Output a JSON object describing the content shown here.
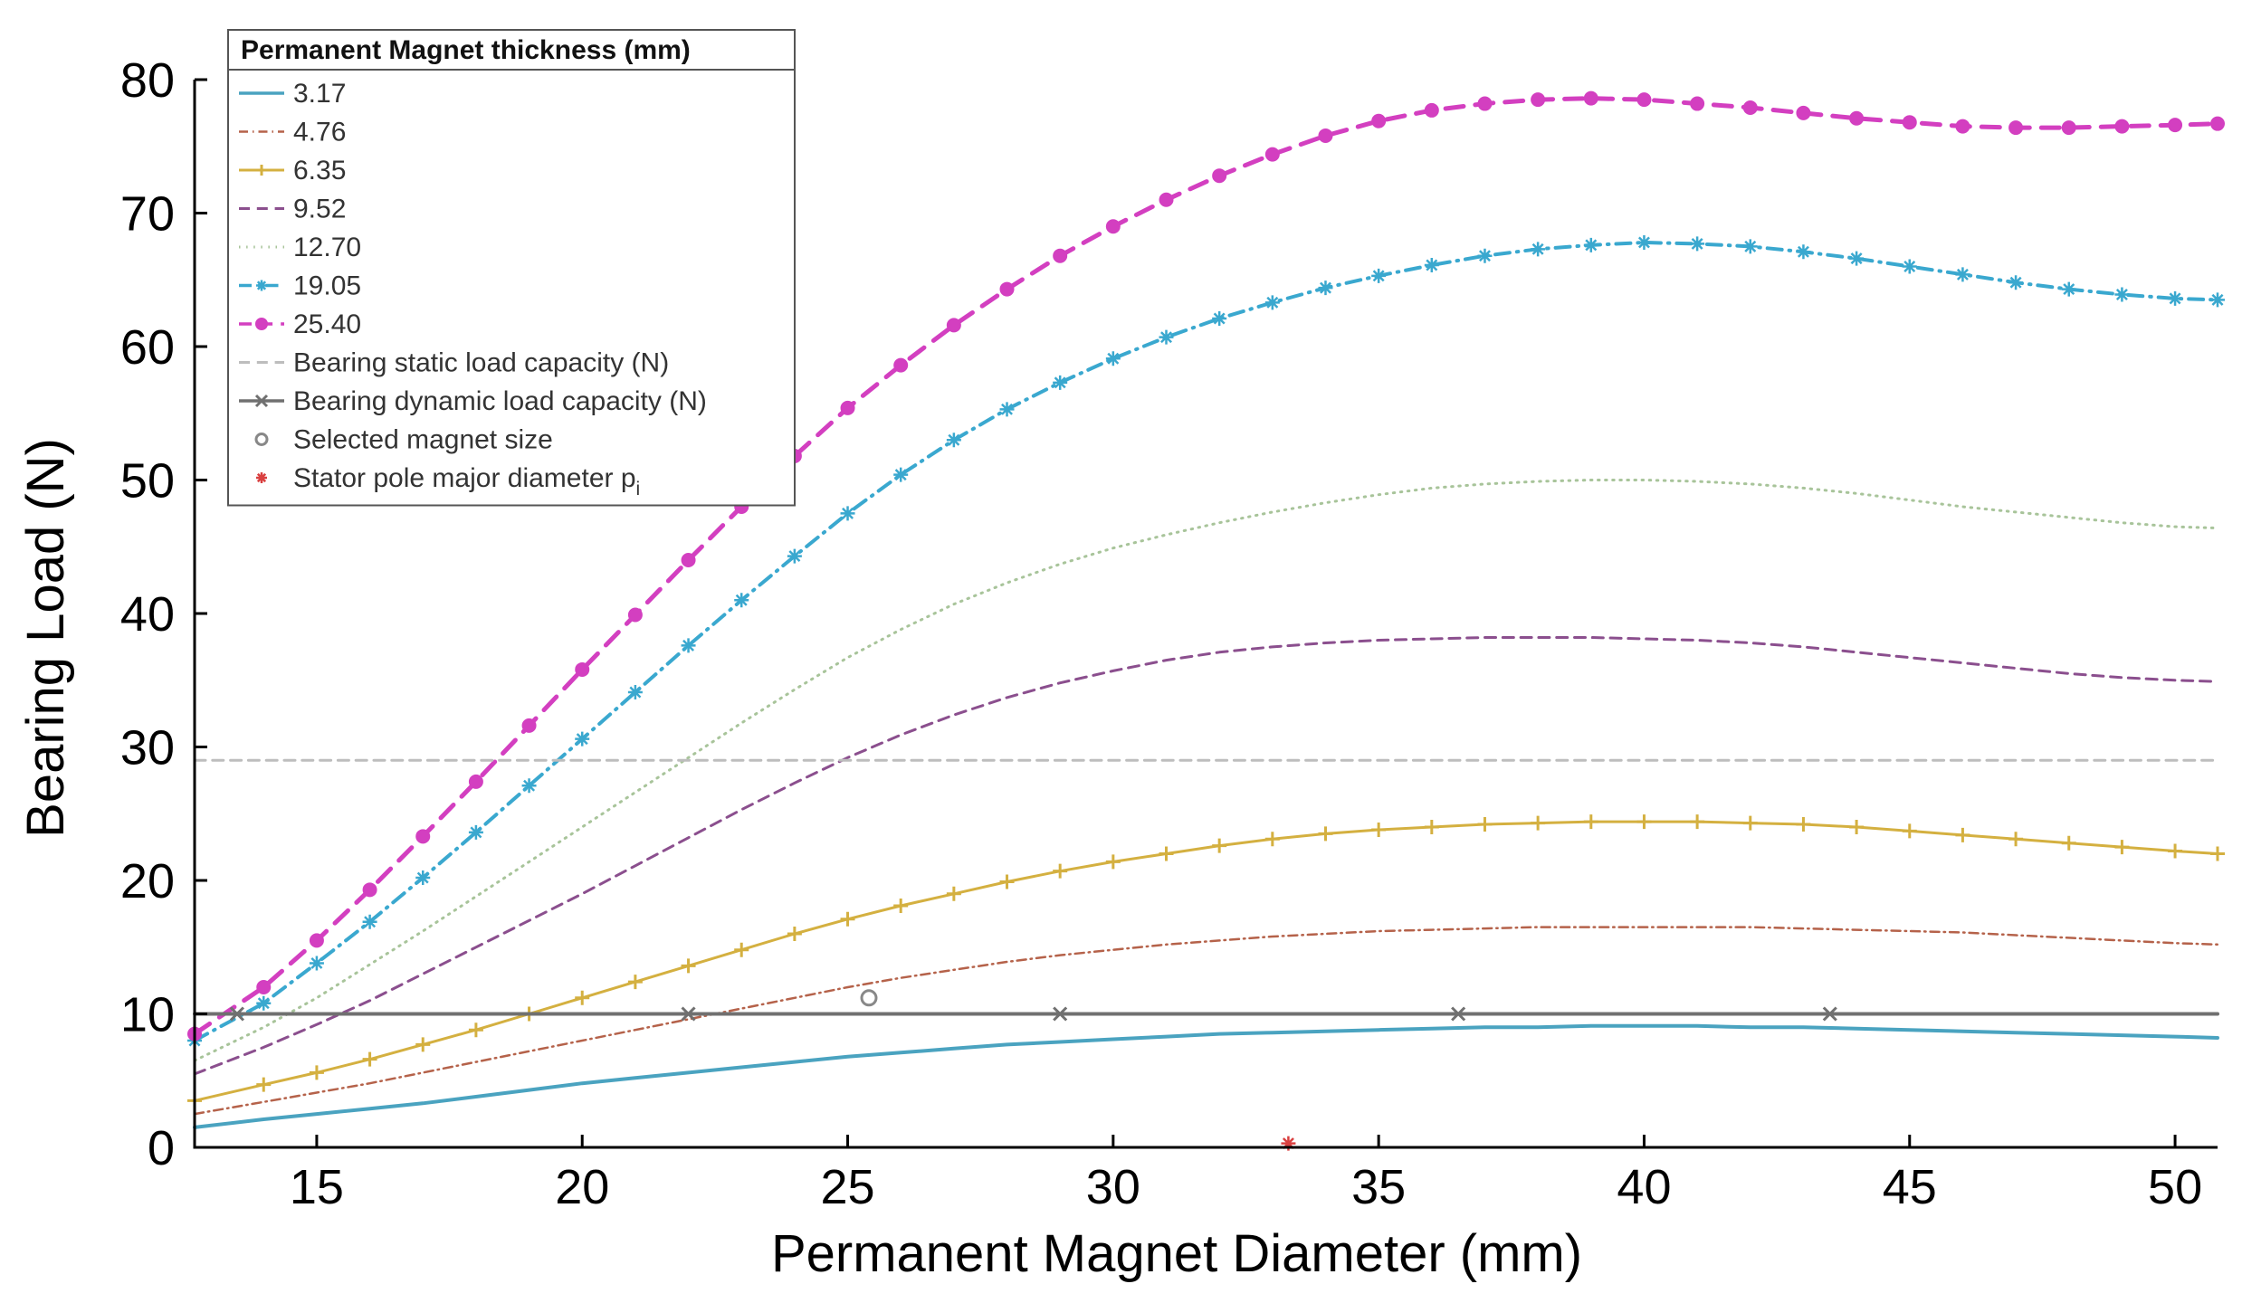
{
  "chart_data": {
    "type": "line",
    "title": "",
    "xlabel": "Permanent Magnet Diameter (mm)",
    "ylabel": "Bearing Load (N)",
    "xlim": [
      12.7,
      50.8
    ],
    "ylim": [
      0,
      80
    ],
    "xticks": [
      15,
      20,
      25,
      30,
      35,
      40,
      45,
      50
    ],
    "yticks": [
      0,
      10,
      20,
      30,
      40,
      50,
      60,
      70,
      80
    ],
    "x": [
      12.7,
      14,
      15,
      16,
      17,
      18,
      19,
      20,
      21,
      22,
      23,
      24,
      25,
      26,
      27,
      28,
      29,
      30,
      31,
      32,
      33,
      34,
      35,
      36,
      37,
      38,
      39,
      40,
      41,
      42,
      43,
      44,
      45,
      46,
      47,
      48,
      49,
      50,
      50.8
    ],
    "legend_title": "Permanent Magnet thickness (mm)",
    "legend_location": "top-left",
    "series": [
      {
        "name": "3.17",
        "color": "#4aa3c0",
        "style": "solid",
        "marker": "none",
        "width": 4,
        "values": [
          1.5,
          2.1,
          2.5,
          2.9,
          3.3,
          3.8,
          4.3,
          4.8,
          5.2,
          5.6,
          6.0,
          6.4,
          6.8,
          7.1,
          7.4,
          7.7,
          7.9,
          8.1,
          8.3,
          8.5,
          8.6,
          8.7,
          8.8,
          8.9,
          9.0,
          9.0,
          9.1,
          9.1,
          9.1,
          9.0,
          9.0,
          8.9,
          8.8,
          8.7,
          8.6,
          8.5,
          8.4,
          8.3,
          8.2
        ]
      },
      {
        "name": "4.76",
        "color": "#b5624a",
        "style": "dashdot",
        "marker": "none",
        "width": 2.5,
        "values": [
          2.5,
          3.4,
          4.1,
          4.8,
          5.6,
          6.4,
          7.2,
          8.0,
          8.8,
          9.6,
          10.4,
          11.2,
          12.0,
          12.7,
          13.3,
          13.9,
          14.4,
          14.8,
          15.2,
          15.5,
          15.8,
          16.0,
          16.2,
          16.3,
          16.4,
          16.5,
          16.5,
          16.5,
          16.5,
          16.5,
          16.4,
          16.3,
          16.2,
          16.1,
          15.9,
          15.7,
          15.5,
          15.3,
          15.2
        ]
      },
      {
        "name": "6.35",
        "color": "#d4b040",
        "style": "solid",
        "marker": "plus",
        "width": 3,
        "values": [
          3.5,
          4.7,
          5.6,
          6.6,
          7.7,
          8.8,
          10.0,
          11.2,
          12.4,
          13.6,
          14.8,
          16.0,
          17.1,
          18.1,
          19.0,
          19.9,
          20.7,
          21.4,
          22.0,
          22.6,
          23.1,
          23.5,
          23.8,
          24.0,
          24.2,
          24.3,
          24.4,
          24.4,
          24.4,
          24.3,
          24.2,
          24.0,
          23.7,
          23.4,
          23.1,
          22.8,
          22.5,
          22.2,
          22.0
        ]
      },
      {
        "name": "9.52",
        "color": "#8b4f8e",
        "style": "dashed",
        "marker": "none",
        "width": 3,
        "values": [
          5.5,
          7.5,
          9.2,
          11.0,
          13.0,
          15.0,
          17.0,
          19.0,
          21.1,
          23.2,
          25.3,
          27.3,
          29.2,
          30.9,
          32.4,
          33.7,
          34.8,
          35.7,
          36.5,
          37.1,
          37.5,
          37.8,
          38.0,
          38.1,
          38.2,
          38.2,
          38.2,
          38.1,
          38.0,
          37.8,
          37.5,
          37.1,
          36.7,
          36.3,
          35.9,
          35.5,
          35.2,
          35.0,
          34.9
        ]
      },
      {
        "name": "12.70",
        "color": "#a8c49a",
        "style": "dotted",
        "marker": "none",
        "width": 3,
        "values": [
          6.5,
          9.0,
          11.2,
          13.7,
          16.2,
          18.8,
          21.4,
          24.0,
          26.6,
          29.2,
          31.8,
          34.3,
          36.7,
          38.8,
          40.7,
          42.3,
          43.7,
          44.9,
          45.9,
          46.8,
          47.6,
          48.3,
          48.9,
          49.4,
          49.7,
          49.9,
          50.0,
          50.0,
          49.9,
          49.7,
          49.4,
          49.0,
          48.5,
          48.0,
          47.6,
          47.2,
          46.8,
          46.5,
          46.4
        ]
      },
      {
        "name": "19.05",
        "color": "#3aa8cf",
        "style": "dashdot",
        "marker": "star",
        "width": 4,
        "values": [
          8.0,
          10.8,
          13.8,
          16.9,
          20.2,
          23.6,
          27.1,
          30.6,
          34.1,
          37.6,
          41.0,
          44.3,
          47.5,
          50.4,
          53.0,
          55.3,
          57.3,
          59.1,
          60.7,
          62.1,
          63.3,
          64.4,
          65.3,
          66.1,
          66.8,
          67.3,
          67.6,
          67.8,
          67.7,
          67.5,
          67.1,
          66.6,
          66.0,
          65.4,
          64.8,
          64.3,
          63.9,
          63.6,
          63.5
        ]
      },
      {
        "name": "25.40",
        "color": "#d33fc0",
        "style": "dashed",
        "marker": "circle",
        "width": 5,
        "values": [
          8.5,
          12.0,
          15.5,
          19.3,
          23.3,
          27.4,
          31.6,
          35.8,
          39.9,
          44.0,
          48.0,
          51.8,
          55.4,
          58.6,
          61.6,
          64.3,
          66.8,
          69.0,
          71.0,
          72.8,
          74.4,
          75.8,
          76.9,
          77.7,
          78.2,
          78.5,
          78.6,
          78.5,
          78.2,
          77.9,
          77.5,
          77.1,
          76.8,
          76.5,
          76.4,
          76.4,
          76.5,
          76.6,
          76.7
        ]
      },
      {
        "name": "Bearing static load capacity (N)",
        "color": "#bdbdbd",
        "style": "dashed",
        "marker": "none",
        "width": 3,
        "constant": 29
      },
      {
        "name": "Bearing dynamic load capacity (N)",
        "color": "#707070",
        "style": "solid",
        "marker": "x",
        "width": 4,
        "constant": 10
      }
    ],
    "scatter_series": [
      {
        "name": "Selected magnet size",
        "color": "#888888",
        "marker": "circle-open",
        "points": [
          [
            25.4,
            11.2
          ]
        ]
      },
      {
        "name": "Stator pole major diameter p",
        "name_subscript": "i",
        "color": "#d94040",
        "marker": "star",
        "points": [
          [
            33.3,
            0.3
          ]
        ]
      }
    ]
  }
}
